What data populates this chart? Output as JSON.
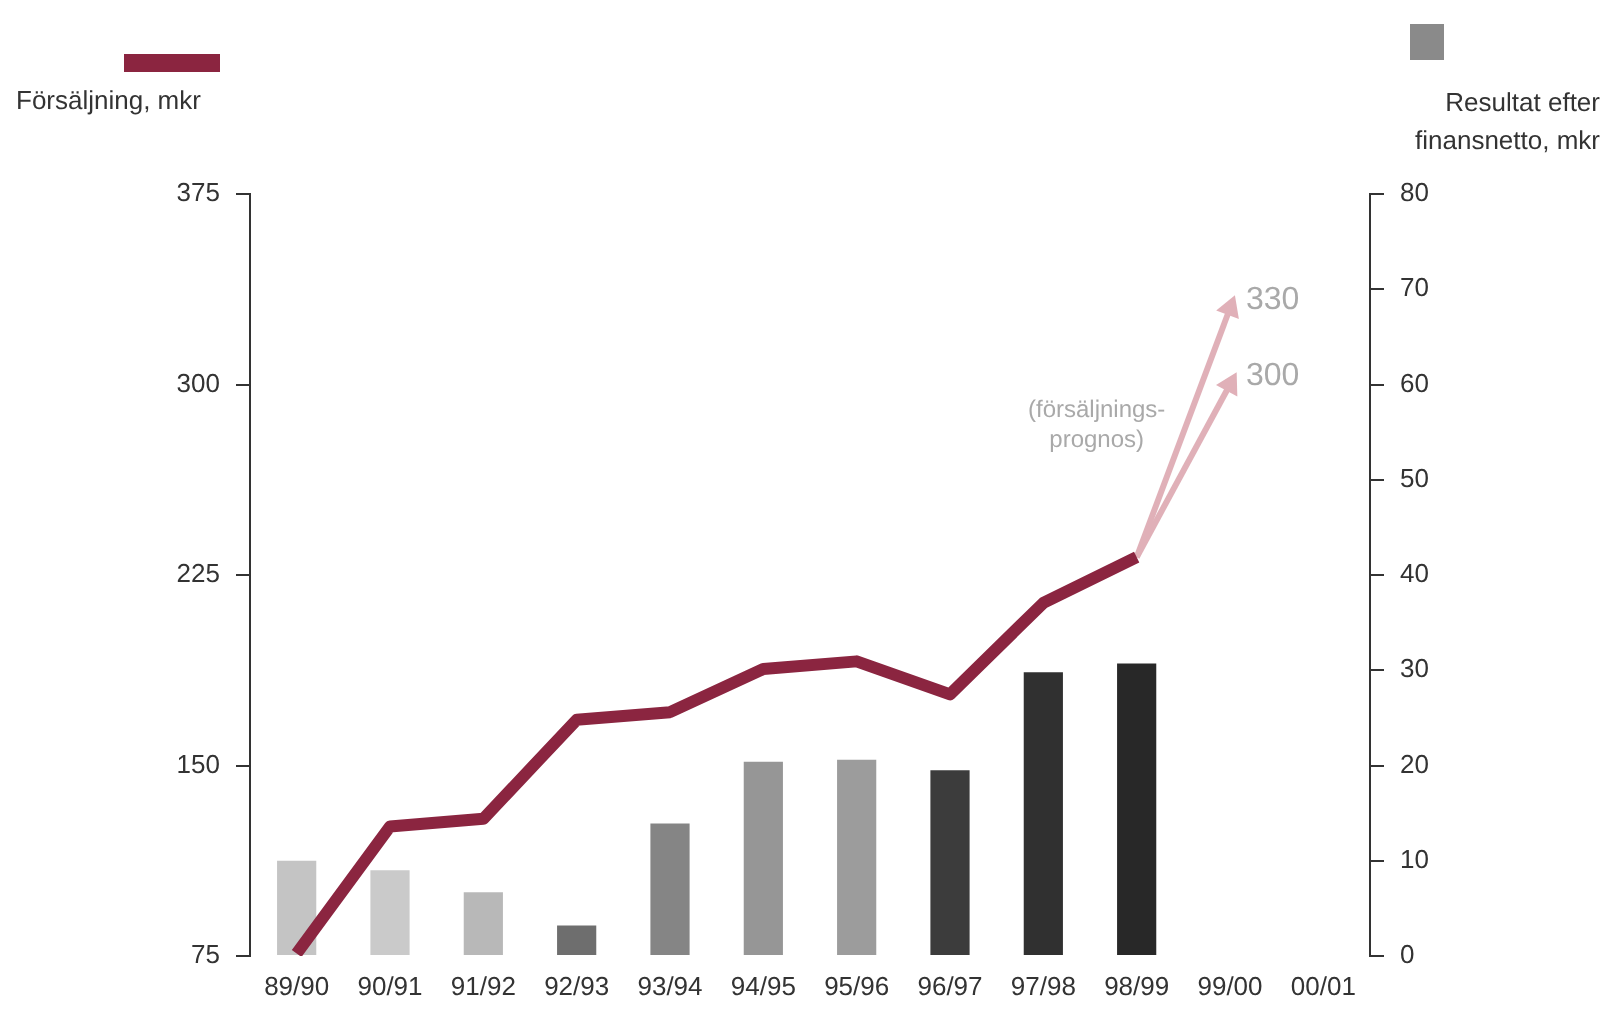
{
  "chart_data": {
    "type": "bar",
    "categories": [
      "89/90",
      "90/91",
      "91/92",
      "92/93",
      "93/94",
      "94/95",
      "95/96",
      "96/97",
      "97/98",
      "98/99",
      "99/00",
      "00/01"
    ],
    "series": [
      {
        "name": "Resultat efter finansnetto, mkr",
        "axis": "y2",
        "color": "#8a8a8a",
        "colors": [
          "#c4c4c4",
          "#cacaca",
          "#b8b8b8",
          "#6e6e6e",
          "#858585",
          "#969696",
          "#9c9c9c",
          "#3c3c3c",
          "#303030",
          "#282828",
          null,
          null
        ],
        "values": [
          10,
          9,
          6.7,
          3.2,
          13.9,
          20.4,
          20.6,
          19.5,
          29.8,
          30.7,
          null,
          null
        ]
      },
      {
        "type": "line",
        "name": "Försäljning, mkr",
        "color": "#8b2540",
        "values": [
          76,
          126,
          129,
          168,
          171,
          188,
          191,
          178,
          214,
          232,
          null,
          null
        ]
      },
      {
        "type": "line",
        "color": "#e0b0b8",
        "values": [
          null,
          null,
          null,
          null,
          null,
          null,
          null,
          null,
          null,
          232,
          330,
          null
        ],
        "value_labels": [
          null,
          null,
          null,
          null,
          null,
          null,
          null,
          null,
          null,
          null,
          "330",
          null
        ]
      },
      {
        "type": "line",
        "color": "#e0b0b8",
        "values": [
          null,
          null,
          null,
          null,
          null,
          null,
          null,
          null,
          null,
          232,
          300,
          null
        ],
        "value_labels": [
          null,
          null,
          null,
          null,
          null,
          null,
          null,
          null,
          null,
          null,
          "300",
          null
        ]
      }
    ],
    "ylim": [
      75,
      375
    ],
    "yticks": [
      75,
      150,
      225,
      300,
      375
    ],
    "y2lim": [
      0,
      80
    ],
    "y2ticks": [
      0,
      10,
      20,
      30,
      40,
      50,
      60,
      70,
      80
    ],
    "annotations": [
      "(försäljnings-\nprognos)"
    ],
    "legend": "top",
    "grid": false
  }
}
